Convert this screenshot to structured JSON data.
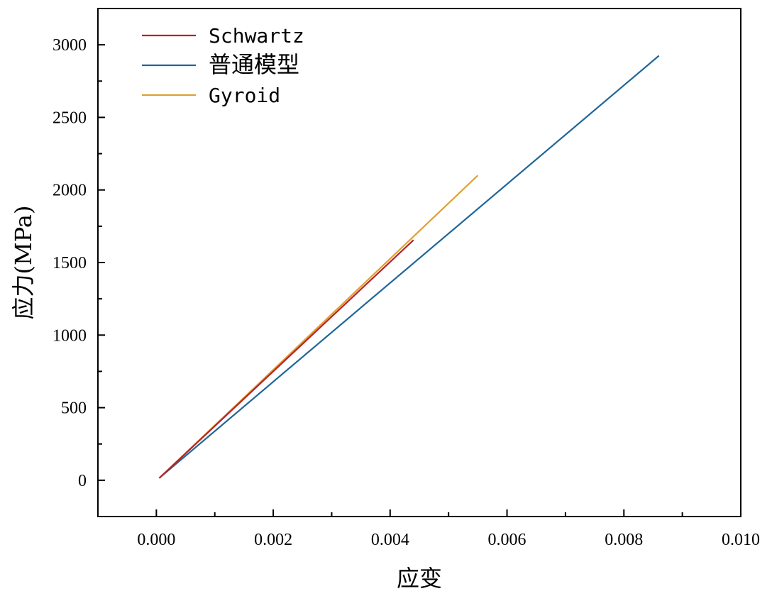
{
  "chart_data": {
    "type": "line",
    "title": "",
    "xlabel": "应变",
    "ylabel": "应力(MPa)",
    "xlim": [
      -0.001,
      0.01
    ],
    "ylim": [
      -250,
      3250
    ],
    "x_ticks": [
      0.0,
      0.002,
      0.004,
      0.006,
      0.008,
      0.01
    ],
    "x_tick_labels": [
      "0.000",
      "0.002",
      "0.004",
      "0.006",
      "0.008",
      "0.010"
    ],
    "y_ticks": [
      0,
      500,
      1000,
      1500,
      2000,
      2500,
      3000
    ],
    "y_tick_labels": [
      "0",
      "500",
      "1000",
      "1500",
      "2000",
      "2500",
      "3000"
    ],
    "grid": false,
    "legend_position": "top-left",
    "series": [
      {
        "name": "Schwartz",
        "color": "#b5232b",
        "x": [
          5e-05,
          0.0044
        ],
        "y": [
          15,
          1655
        ]
      },
      {
        "name": "普通模型",
        "color": "#1f6699",
        "x": [
          5e-05,
          0.0086
        ],
        "y": [
          15,
          2925
        ]
      },
      {
        "name": "Gyroid",
        "color": "#e0a030",
        "x": [
          5e-05,
          0.0055
        ],
        "y": [
          15,
          2100
        ]
      }
    ]
  }
}
